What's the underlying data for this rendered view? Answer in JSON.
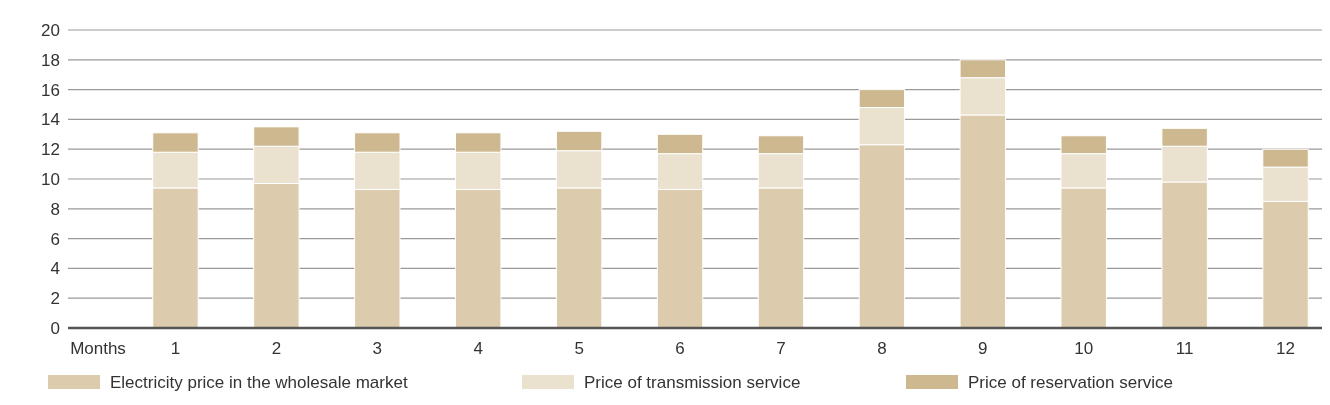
{
  "chart_data": {
    "type": "bar",
    "stacked": true,
    "xlabel": "Months",
    "categories": [
      "1",
      "2",
      "3",
      "4",
      "5",
      "6",
      "7",
      "8",
      "9",
      "10",
      "11",
      "12"
    ],
    "series": [
      {
        "name": "Electricity price in the wholesale market",
        "color": "#dccbad",
        "values": [
          9.4,
          9.7,
          9.3,
          9.3,
          9.4,
          9.3,
          9.4,
          12.3,
          14.3,
          9.4,
          9.8,
          8.5
        ]
      },
      {
        "name": "Price of transmission service",
        "color": "#ebe1cf",
        "values": [
          2.4,
          2.5,
          2.5,
          2.5,
          2.5,
          2.4,
          2.3,
          2.5,
          2.5,
          2.3,
          2.4,
          2.3
        ]
      },
      {
        "name": "Price of reservation service",
        "color": "#cdb88f",
        "values": [
          1.3,
          1.3,
          1.3,
          1.3,
          1.3,
          1.3,
          1.2,
          1.2,
          1.2,
          1.2,
          1.2,
          1.2
        ]
      }
    ],
    "ylim": [
      0,
      20
    ],
    "yticks": [
      0,
      2,
      4,
      6,
      8,
      10,
      12,
      14,
      16,
      18,
      20
    ],
    "grid": "y",
    "legend": "bottom"
  }
}
